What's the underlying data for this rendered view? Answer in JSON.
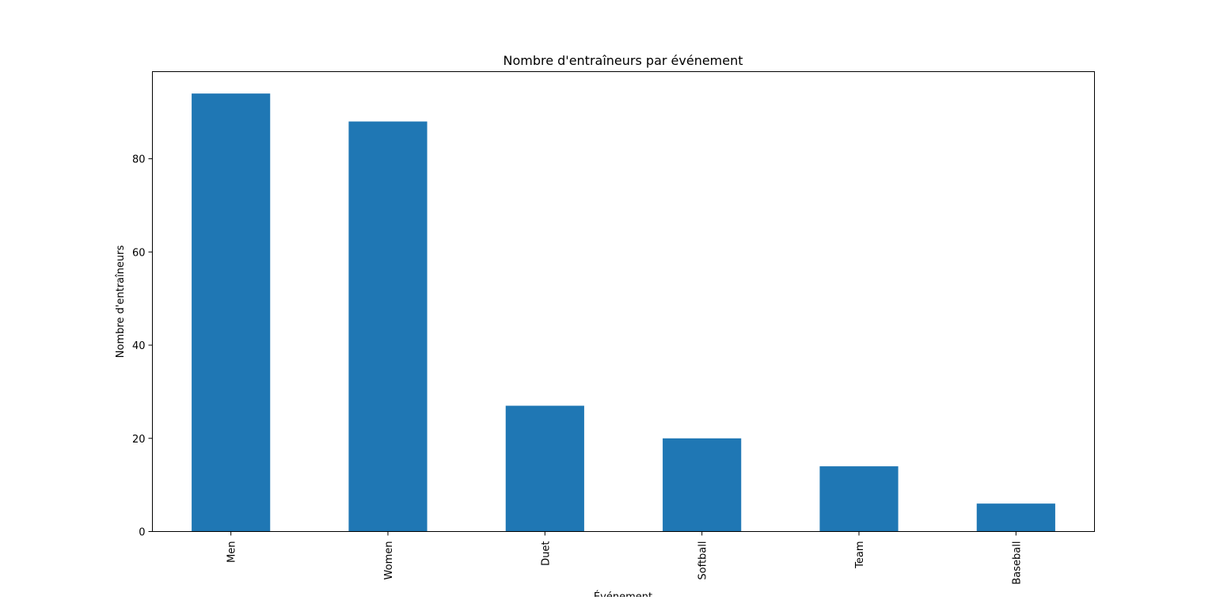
{
  "chart_data": {
    "type": "bar",
    "title": "Nombre d'entraîneurs par événement",
    "xlabel": "Événement",
    "ylabel": "Nombre d'entraîneurs",
    "categories": [
      "Men",
      "Women",
      "Duet",
      "Softball",
      "Team",
      "Baseball"
    ],
    "values": [
      94,
      88,
      27,
      20,
      14,
      6
    ],
    "ylim": [
      0,
      98.7
    ],
    "yticks": [
      0,
      20,
      40,
      60,
      80
    ],
    "grid": false,
    "legend": "none",
    "bar_color": "#1f77b4"
  }
}
